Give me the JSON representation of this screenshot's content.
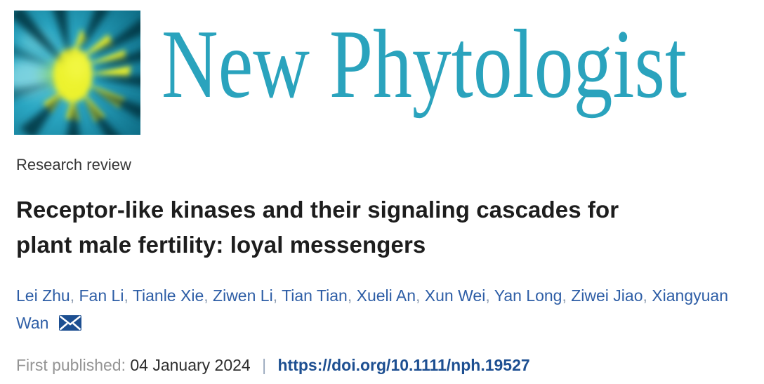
{
  "header": {
    "journal_name": "New Phytologist"
  },
  "article": {
    "category": "Research review",
    "title": "Receptor-like kinases and their signaling cascades for plant male fertility: loyal messengers",
    "title_line1": "Receptor-like kinases and their signaling cascades for",
    "title_line2": "plant male fertility: loyal messengers"
  },
  "authors": {
    "names": [
      "Lei Zhu",
      "Fan Li",
      "Tianle Xie",
      "Ziwen Li",
      "Tian Tian",
      "Xueli An",
      "Xun Wei",
      "Yan Long",
      "Ziwei Jiao",
      "Xiangyuan Wan"
    ],
    "corresponding_author": "Xiangyuan Wan",
    "email_icon": "envelope-icon"
  },
  "publication": {
    "first_published_label": "First published:",
    "date": "04 January 2024",
    "separator": "|",
    "doi_url": "https://doi.org/10.1111/nph.19527"
  },
  "colors": {
    "journal_teal": "#2aa3bd",
    "logo_yellow": "#e9f02e",
    "logo_dark_ray": "#06323c",
    "author_blue": "#2e5ea6",
    "doi_blue": "#1d4f91",
    "title_dark": "#1d1d1d",
    "muted_gray": "#949494"
  }
}
